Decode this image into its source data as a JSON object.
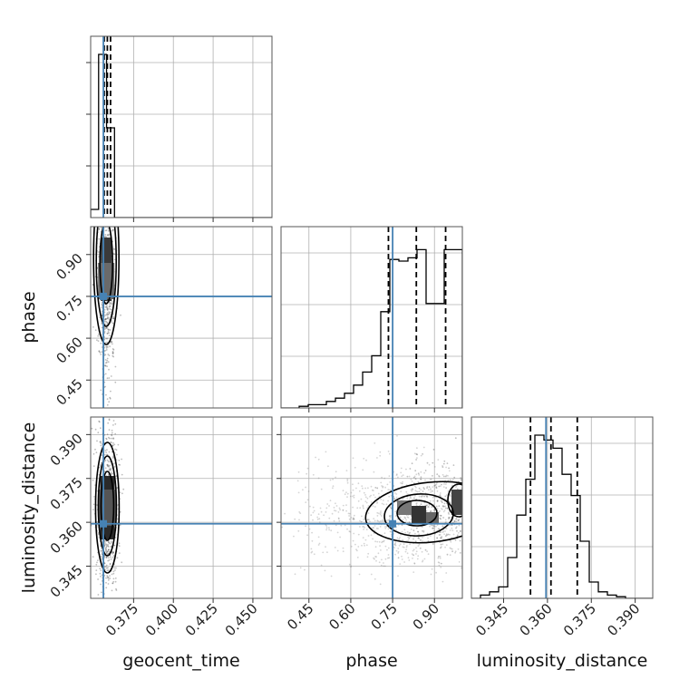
{
  "chart_data": {
    "type": "corner",
    "parameters": [
      "geocent_time",
      "phase",
      "luminosity_distance"
    ],
    "axis_labels": {
      "geocent_time": "geocent_time",
      "phase": "phase",
      "luminosity_distance": "luminosity_distance"
    },
    "ranges": {
      "geocent_time": [
        0.348,
        0.462
      ],
      "phase": [
        0.35,
        1.0
      ],
      "luminosity_distance": [
        0.334,
        0.396
      ]
    },
    "ticks": {
      "geocent_time": [
        "0.375",
        "0.400",
        "0.425",
        "0.450"
      ],
      "phase": [
        "0.45",
        "0.60",
        "0.75",
        "0.90"
      ],
      "luminosity_distance": [
        "0.345",
        "0.360",
        "0.375",
        "0.390"
      ]
    },
    "truths": {
      "geocent_time": 0.356,
      "phase": 0.75,
      "luminosity_distance": 0.3595
    },
    "quantiles": {
      "geocent_time": [
        0.3565,
        0.3585,
        0.3605
      ],
      "phase": [
        0.735,
        0.835,
        0.94
      ],
      "luminosity_distance": [
        0.3542,
        0.3612,
        0.3702
      ]
    },
    "histograms": {
      "geocent_time": {
        "bins": [
          0.348,
          0.353,
          0.358,
          0.363,
          0.368
        ],
        "counts": [
          0.05,
          1.0,
          0.55,
          0.0
        ]
      },
      "phase": {
        "bins": [
          0.35,
          0.3825,
          0.415,
          0.4475,
          0.48,
          0.5125,
          0.545,
          0.5775,
          0.61,
          0.6425,
          0.675,
          0.7075,
          0.74,
          0.7725,
          0.805,
          0.8375,
          0.87,
          0.9025,
          0.935,
          0.9675,
          1.0
        ],
        "counts": [
          0.0,
          0.0,
          0.01,
          0.02,
          0.02,
          0.04,
          0.06,
          0.09,
          0.14,
          0.22,
          0.32,
          0.59,
          0.91,
          0.9,
          0.92,
          0.97,
          0.64,
          0.64,
          0.97,
          0.97
        ]
      },
      "luminosity_distance": {
        "bins": [
          0.334,
          0.3371,
          0.3402,
          0.3433,
          0.3464,
          0.3495,
          0.3526,
          0.3557,
          0.3588,
          0.3619,
          0.365,
          0.3681,
          0.3712,
          0.3743,
          0.3774,
          0.3805,
          0.3836,
          0.3867,
          0.3898,
          0.3929,
          0.396
        ],
        "counts": [
          0.0,
          0.02,
          0.04,
          0.07,
          0.25,
          0.51,
          0.73,
          1.0,
          0.97,
          0.92,
          0.76,
          0.63,
          0.35,
          0.1,
          0.04,
          0.02,
          0.01,
          0.0,
          0.0,
          0.0
        ]
      }
    },
    "grid": true,
    "truth_color": "#4682b4"
  }
}
